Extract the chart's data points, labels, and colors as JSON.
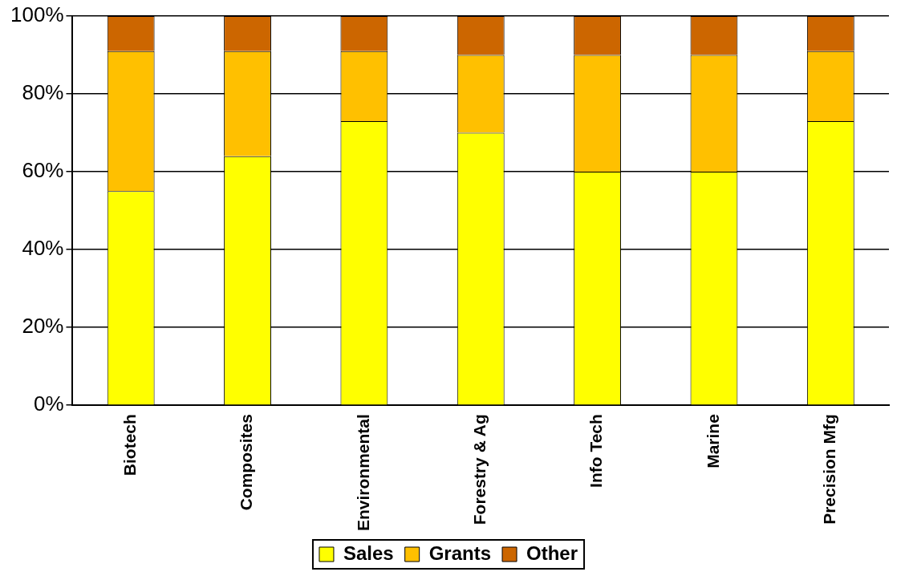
{
  "chart_data": {
    "type": "bar",
    "stacked": true,
    "categories": [
      "Biotech",
      "Composites",
      "Environmental",
      "Forestry & Ag",
      "Info Tech",
      "Marine",
      "Precision Mfg"
    ],
    "series": [
      {
        "name": "Sales",
        "color": "#ffff00",
        "values": [
          55,
          64,
          73,
          70,
          60,
          60,
          73
        ]
      },
      {
        "name": "Grants",
        "color": "#ffc000",
        "values": [
          36,
          27,
          18,
          20,
          30,
          30,
          18
        ]
      },
      {
        "name": "Other",
        "color": "#cc6600",
        "values": [
          9,
          9,
          9,
          10,
          10,
          10,
          9
        ]
      }
    ],
    "ylim": [
      0,
      100
    ],
    "yticks": [
      {
        "value": 0,
        "label": "0%"
      },
      {
        "value": 20,
        "label": "20%"
      },
      {
        "value": 40,
        "label": "40%"
      },
      {
        "value": 60,
        "label": "60%"
      },
      {
        "value": 80,
        "label": "80%"
      },
      {
        "value": 100,
        "label": "100%"
      }
    ],
    "grid": "y",
    "legend": "bottom"
  }
}
